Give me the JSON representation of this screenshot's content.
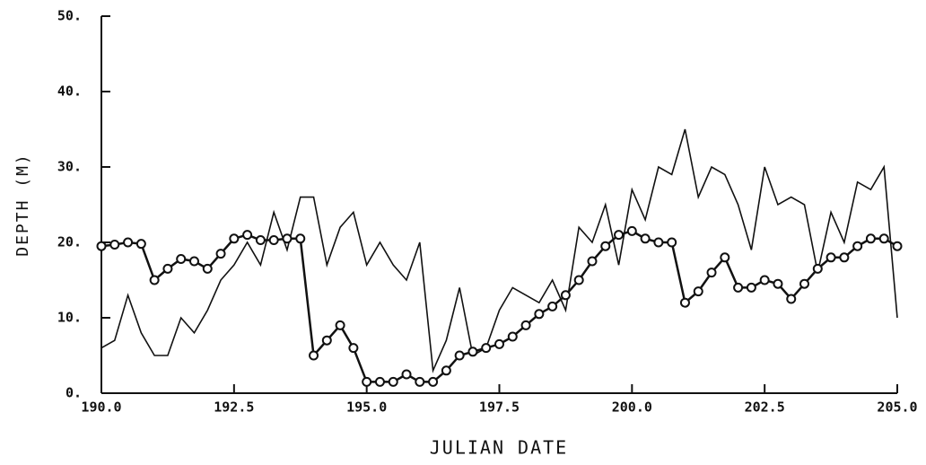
{
  "chart_data": {
    "type": "line",
    "x_label": "JULIAN DATE",
    "y_label": "DEPTH (M)",
    "x": [
      190.0,
      190.25,
      190.5,
      190.75,
      191.0,
      191.25,
      191.5,
      191.75,
      192.0,
      192.25,
      192.5,
      192.75,
      193.0,
      193.25,
      193.5,
      193.75,
      194.0,
      194.25,
      194.5,
      194.75,
      195.0,
      195.25,
      195.5,
      195.75,
      196.0,
      196.25,
      196.5,
      196.75,
      197.0,
      197.25,
      197.5,
      197.75,
      198.0,
      198.25,
      198.5,
      198.75,
      199.0,
      199.25,
      199.5,
      199.75,
      200.0,
      200.25,
      200.5,
      200.75,
      201.0,
      201.25,
      201.5,
      201.75,
      202.0,
      202.25,
      202.5,
      202.75,
      203.0,
      203.25,
      203.5,
      203.75,
      204.0,
      204.25,
      204.5,
      204.75,
      205.0
    ],
    "series": [
      {
        "color": "#111111",
        "marker": "none",
        "values": [
          6,
          7,
          13,
          8,
          5,
          5,
          10,
          8,
          11,
          15,
          17,
          20,
          17,
          24,
          19,
          26,
          26,
          17,
          22,
          24,
          17,
          20,
          17,
          15,
          20,
          3,
          7,
          14,
          5,
          6,
          11,
          14,
          13,
          12,
          15,
          11,
          22,
          20,
          25,
          17,
          27,
          23,
          30,
          29,
          35,
          26,
          30,
          29,
          25,
          19,
          30,
          25,
          26,
          25,
          16,
          24,
          20,
          28,
          27,
          30,
          10
        ]
      },
      {
        "color": "#111111",
        "marker": "circle",
        "values": [
          19.5,
          19.7,
          20,
          19.8,
          15,
          16.5,
          17.8,
          17.5,
          16.5,
          18.5,
          20.5,
          21,
          20.3,
          20.3,
          20.5,
          20.5,
          5,
          7,
          9,
          6,
          1.5,
          1.5,
          1.5,
          2.5,
          1.5,
          1.5,
          3,
          5,
          5.5,
          6,
          6.5,
          7.5,
          9,
          10.5,
          11.5,
          13,
          15,
          17.5,
          19.5,
          21,
          21.5,
          20.5,
          20,
          20,
          12,
          13.5,
          16,
          18,
          14,
          14,
          15,
          14.5,
          12.5,
          14.5,
          16.5,
          18,
          18,
          19.5,
          20.5,
          20.5,
          19.5
        ]
      }
    ],
    "xlim": [
      190,
      205
    ],
    "xticks": [
      {
        "value": 190,
        "label": "190.0"
      },
      {
        "value": 192.5,
        "label": "192.5"
      },
      {
        "value": 195,
        "label": "195.0"
      },
      {
        "value": 197.5,
        "label": "197.5"
      },
      {
        "value": 200,
        "label": "200.0"
      },
      {
        "value": 202.5,
        "label": "202.5"
      },
      {
        "value": 205,
        "label": "205.0"
      }
    ],
    "ylim": [
      0,
      50
    ],
    "yticks": [
      {
        "value": 0,
        "label": "0."
      },
      {
        "value": 10,
        "label": "10."
      },
      {
        "value": 20,
        "label": "20."
      },
      {
        "value": 30,
        "label": "30."
      },
      {
        "value": 40,
        "label": "40."
      },
      {
        "value": 50,
        "label": "50."
      }
    ]
  }
}
